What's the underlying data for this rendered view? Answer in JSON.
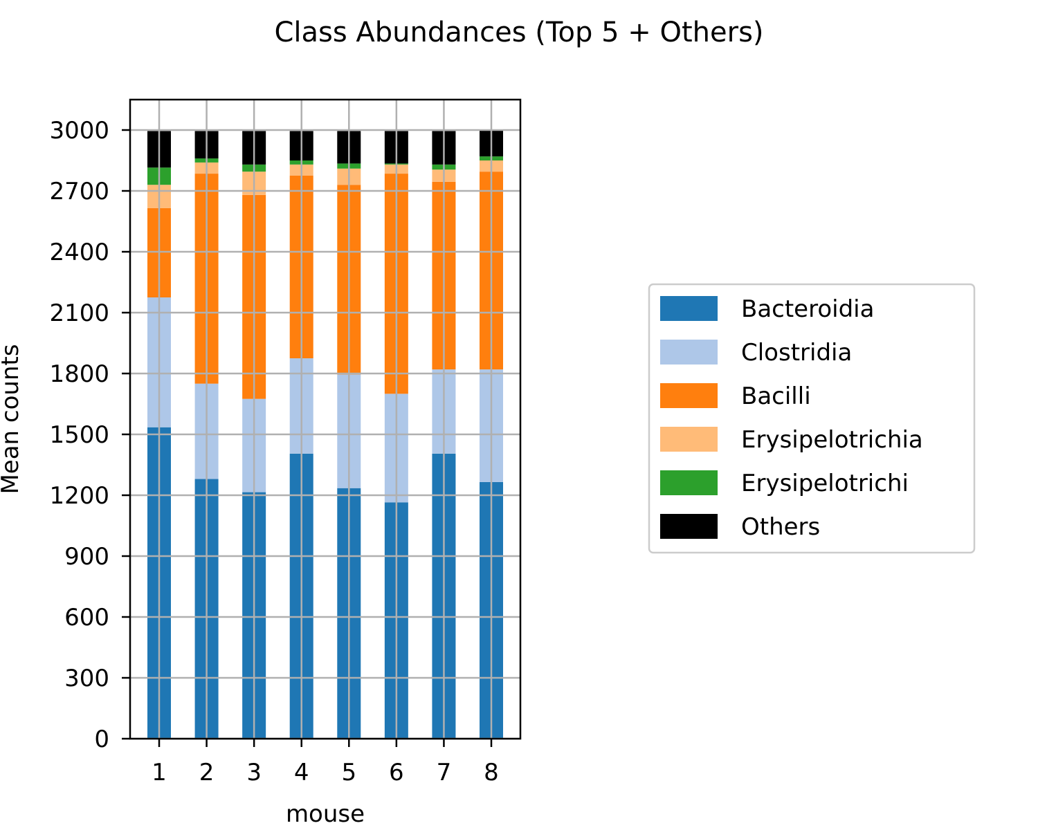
{
  "chart_data": {
    "type": "bar",
    "stacked": true,
    "title": "Class Abundances (Top 5  + Others)",
    "xlabel": "mouse",
    "ylabel": "Mean counts",
    "categories": [
      "1",
      "2",
      "3",
      "4",
      "5",
      "6",
      "7",
      "8"
    ],
    "ylim": [
      0,
      3150
    ],
    "yticks": [
      0,
      300,
      600,
      900,
      1200,
      1500,
      1800,
      2100,
      2400,
      2700,
      3000
    ],
    "grid": true,
    "legend_position": "right",
    "series": [
      {
        "name": "Bacteroidia",
        "color": "#1f77b4",
        "values": [
          1535,
          1280,
          1215,
          1405,
          1235,
          1165,
          1405,
          1265
        ]
      },
      {
        "name": "Clostridia",
        "color": "#aec7e8",
        "values": [
          640,
          470,
          460,
          470,
          560,
          535,
          415,
          555
        ]
      },
      {
        "name": "Bacilli",
        "color": "#ff7f0e",
        "values": [
          440,
          1035,
          1005,
          900,
          935,
          1085,
          925,
          975
        ]
      },
      {
        "name": "Erysipelotrichia",
        "color": "#ffbb78",
        "values": [
          115,
          55,
          115,
          55,
          80,
          45,
          60,
          55
        ]
      },
      {
        "name": "Erysipelotrichi",
        "color": "#2ca02c",
        "values": [
          85,
          20,
          35,
          20,
          25,
          5,
          25,
          20
        ]
      },
      {
        "name": "Others",
        "color": "#000000",
        "values": [
          180,
          135,
          165,
          145,
          160,
          160,
          165,
          130
        ]
      }
    ]
  }
}
